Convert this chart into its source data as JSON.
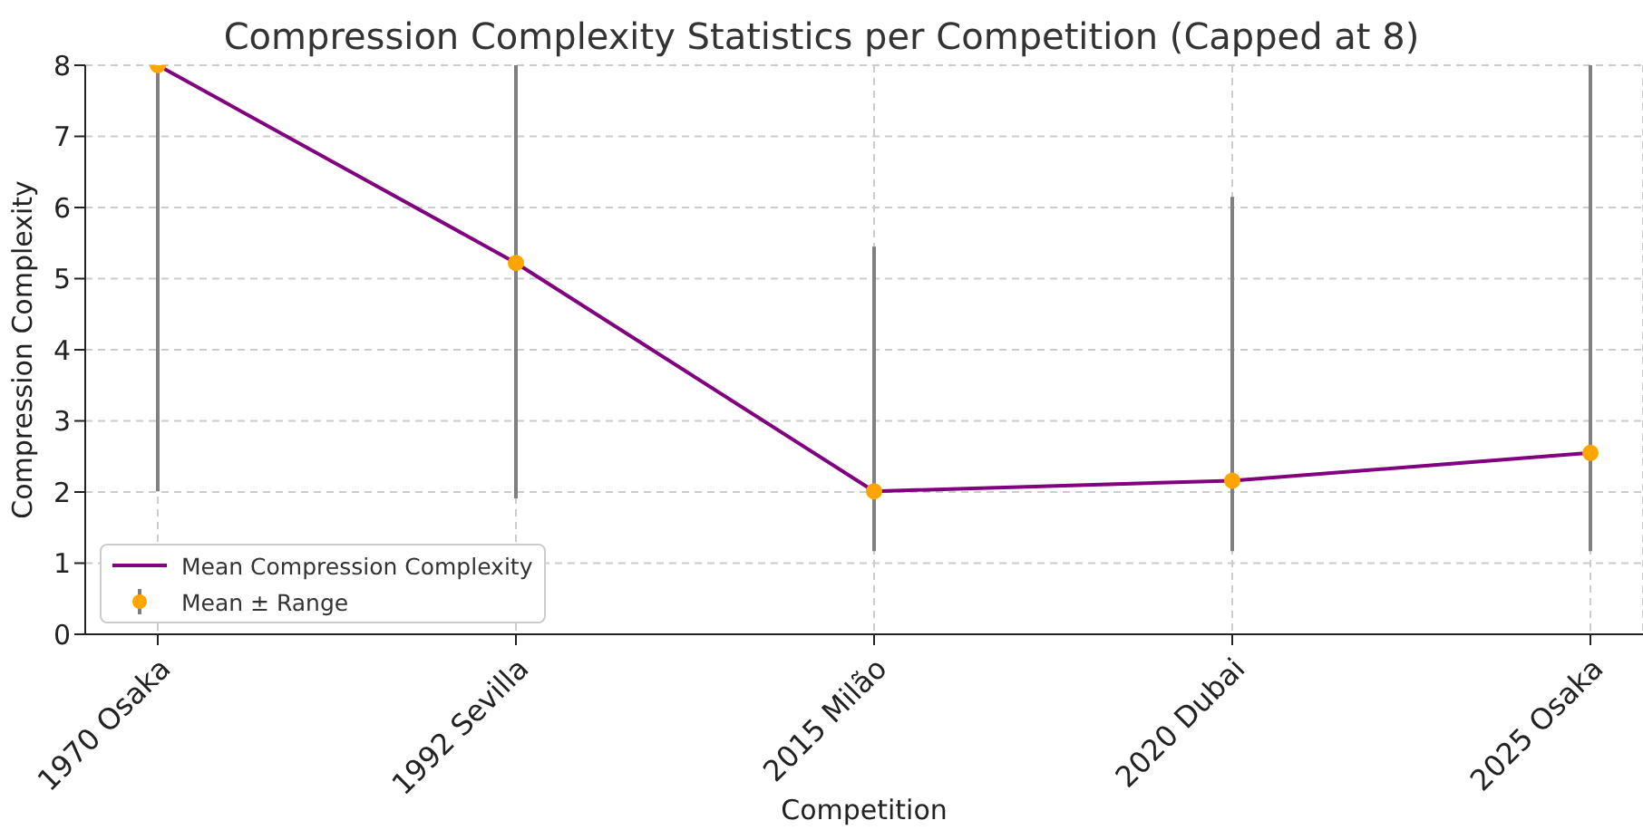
{
  "chart_data": {
    "type": "line",
    "title": "Compression Complexity Statistics per Competition (Capped at 8)",
    "xlabel": "Competition",
    "ylabel": "Compression Complexity",
    "categories": [
      "1970 Osaka",
      "1992 Sevilla",
      "2015 Milão",
      "2020 Dubai",
      "2025 Osaka"
    ],
    "series": [
      {
        "name": "Mean Compression Complexity",
        "type": "line",
        "color": "#800080",
        "marker": "none",
        "values": [
          8.0,
          5.22,
          2.01,
          2.16,
          2.55
        ]
      },
      {
        "name": "Mean ± Range",
        "type": "scatter",
        "color": "#ffa500",
        "marker": "circle",
        "values": [
          8.0,
          5.22,
          2.01,
          2.16,
          2.55
        ],
        "errors": [
          [
            2.01,
            8.0
          ],
          [
            1.91,
            8.0
          ],
          [
            1.17,
            5.45
          ],
          [
            1.17,
            6.15
          ],
          [
            1.17,
            8.0
          ]
        ]
      }
    ],
    "ylim": [
      0,
      8
    ],
    "yticks": [
      0,
      1,
      2,
      3,
      4,
      5,
      6,
      7,
      8
    ],
    "grid": true,
    "legend": "bottom left"
  }
}
